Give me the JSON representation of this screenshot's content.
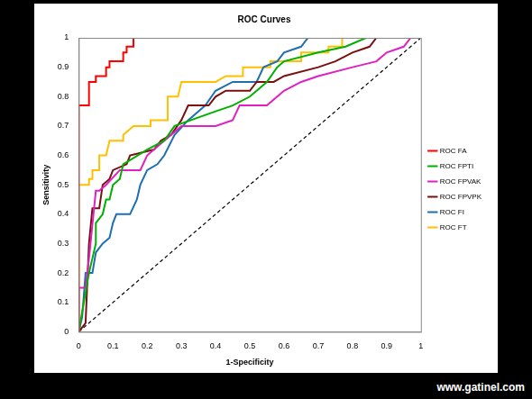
{
  "chart_data": {
    "type": "line",
    "title": "ROC Curves",
    "x_label": "1-Specificity",
    "y_label": "Sensitivity",
    "annotation": "www.gatinel.com",
    "xlim": [
      0,
      1
    ],
    "ylim": [
      0,
      1
    ],
    "xticks": [
      0,
      0.1,
      0.2,
      0.3,
      0.4,
      0.5,
      0.6,
      0.7,
      0.8,
      0.9,
      1
    ],
    "yticks": [
      0,
      0.1,
      0.2,
      0.3,
      0.4,
      0.5,
      0.6,
      0.7,
      0.8,
      0.9,
      1
    ],
    "grid": false,
    "legend": "right",
    "series": [
      {
        "name": "ROC FA",
        "color": "#ff0000",
        "x": [
          0,
          0,
          0.03,
          0.03,
          0.05,
          0.05,
          0.08,
          0.08,
          0.09,
          0.09,
          0.13,
          0.13,
          0.14,
          0.14,
          0.16,
          0.16,
          1
        ],
        "values": [
          0,
          0.77,
          0.77,
          0.85,
          0.85,
          0.87,
          0.87,
          0.9,
          0.9,
          0.92,
          0.92,
          0.95,
          0.95,
          0.97,
          0.97,
          1,
          1
        ]
      },
      {
        "name": "ROC FPTI",
        "color": "#00b000",
        "x": [
          0,
          0.03,
          0.05,
          0.05,
          0.07,
          0.08,
          0.09,
          0.1,
          0.12,
          0.13,
          0.2,
          0.25,
          0.28,
          0.4,
          0.45,
          0.5,
          0.55,
          0.58,
          0.6,
          0.7,
          0.78,
          0.84,
          1
        ],
        "values": [
          0,
          0.2,
          0.3,
          0.37,
          0.4,
          0.45,
          0.45,
          0.5,
          0.52,
          0.57,
          0.62,
          0.65,
          0.7,
          0.75,
          0.77,
          0.8,
          0.85,
          0.9,
          0.92,
          0.95,
          0.97,
          1,
          1
        ]
      },
      {
        "name": "ROC FPVAK",
        "color": "#e020c0",
        "x": [
          0,
          0,
          0.02,
          0.03,
          0.05,
          0.06,
          0.08,
          0.12,
          0.18,
          0.2,
          0.27,
          0.3,
          0.4,
          0.45,
          0.47,
          0.55,
          0.58,
          0.6,
          0.65,
          0.7,
          0.8,
          0.87,
          0.9,
          0.95,
          0.97,
          1
        ],
        "values": [
          0,
          0.15,
          0.15,
          0.25,
          0.48,
          0.48,
          0.5,
          0.55,
          0.55,
          0.6,
          0.67,
          0.7,
          0.7,
          0.72,
          0.77,
          0.77,
          0.8,
          0.82,
          0.85,
          0.87,
          0.9,
          0.92,
          0.95,
          0.97,
          1,
          1
        ]
      },
      {
        "name": "ROC FPVPK",
        "color": "#7b0f0f",
        "x": [
          0,
          0.02,
          0.03,
          0.04,
          0.06,
          0.07,
          0.09,
          0.1,
          0.14,
          0.15,
          0.22,
          0.24,
          0.27,
          0.3,
          0.32,
          0.38,
          0.4,
          0.43,
          0.5,
          0.52,
          0.57,
          0.6,
          0.7,
          0.75,
          0.8,
          0.85,
          0.87,
          1
        ],
        "values": [
          0,
          0.03,
          0.3,
          0.42,
          0.42,
          0.5,
          0.52,
          0.55,
          0.57,
          0.6,
          0.62,
          0.65,
          0.67,
          0.72,
          0.77,
          0.77,
          0.8,
          0.82,
          0.82,
          0.85,
          0.85,
          0.87,
          0.9,
          0.92,
          0.95,
          0.97,
          1,
          1
        ]
      },
      {
        "name": "ROC FI",
        "color": "#1f6fb0",
        "x": [
          0,
          0.01,
          0.02,
          0.04,
          0.05,
          0.07,
          0.09,
          0.1,
          0.11,
          0.15,
          0.17,
          0.18,
          0.2,
          0.23,
          0.25,
          0.28,
          0.32,
          0.37,
          0.4,
          0.45,
          0.52,
          0.54,
          0.58,
          0.6,
          0.65,
          0.67,
          1
        ],
        "values": [
          0,
          0.05,
          0.2,
          0.2,
          0.27,
          0.3,
          0.32,
          0.37,
          0.4,
          0.4,
          0.45,
          0.5,
          0.55,
          0.57,
          0.6,
          0.67,
          0.72,
          0.77,
          0.82,
          0.85,
          0.85,
          0.9,
          0.92,
          0.95,
          0.97,
          1,
          1
        ]
      },
      {
        "name": "ROC FT",
        "color": "#ffc000",
        "x": [
          0,
          0,
          0.03,
          0.03,
          0.04,
          0.04,
          0.06,
          0.06,
          0.08,
          0.09,
          0.13,
          0.13,
          0.16,
          0.21,
          0.21,
          0.26,
          0.26,
          0.29,
          0.3,
          0.4,
          0.43,
          0.48,
          0.48,
          0.56,
          0.56,
          0.65,
          0.65,
          0.73,
          0.73,
          0.77,
          0.77,
          1
        ],
        "values": [
          0,
          0.5,
          0.5,
          0.52,
          0.52,
          0.55,
          0.55,
          0.6,
          0.6,
          0.65,
          0.65,
          0.67,
          0.7,
          0.7,
          0.72,
          0.72,
          0.8,
          0.8,
          0.85,
          0.85,
          0.87,
          0.87,
          0.9,
          0.9,
          0.92,
          0.92,
          0.95,
          0.95,
          0.97,
          0.97,
          1,
          1
        ]
      },
      {
        "color": "#000000",
        "line_style": "dashed",
        "x": [
          0,
          1
        ],
        "values": [
          0,
          1
        ]
      }
    ]
  }
}
